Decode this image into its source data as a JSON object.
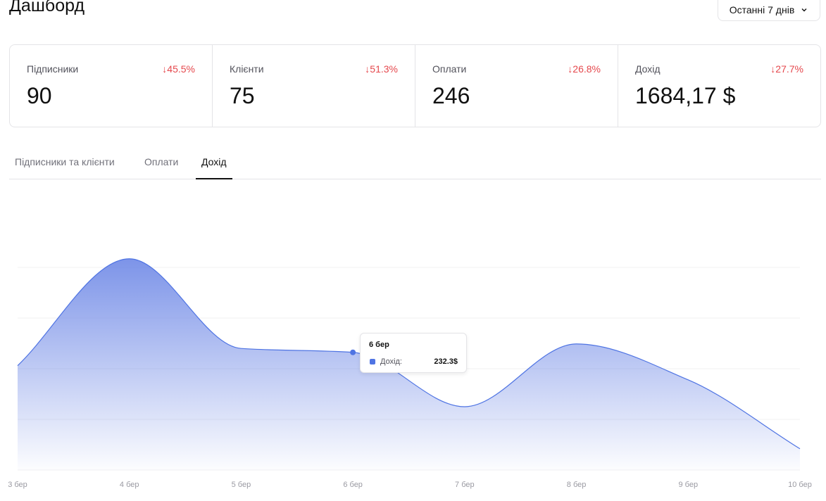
{
  "header": {
    "title": "Дашборд",
    "range_button": "Останні 7 днів"
  },
  "stats": [
    {
      "label": "Підписники",
      "change": "↓45.5%",
      "value": "90"
    },
    {
      "label": "Клієнти",
      "change": "↓51.3%",
      "value": "75"
    },
    {
      "label": "Оплати",
      "change": "↓26.8%",
      "value": "246"
    },
    {
      "label": "Дохід",
      "change": "↓27.7%",
      "value": "1684,17 $"
    }
  ],
  "tabs": {
    "items": [
      "Підписники та клієнти",
      "Оплати",
      "Дохід"
    ],
    "active": 2
  },
  "chart_data": {
    "type": "area",
    "categories": [
      "3 бер",
      "4 бер",
      "5 бер",
      "6 бер",
      "7 бер",
      "8 бер",
      "9 бер",
      "10 бер"
    ],
    "values": [
      206,
      417,
      240,
      232.3,
      125,
      249,
      178,
      42
    ],
    "color": "#4f74e3",
    "ylim": [
      0,
      400
    ],
    "grid_lines": [
      0,
      100,
      200,
      300,
      400
    ],
    "tooltip": {
      "title": "6 бер",
      "series_label": "Дохід:",
      "value": "232.3$"
    }
  }
}
